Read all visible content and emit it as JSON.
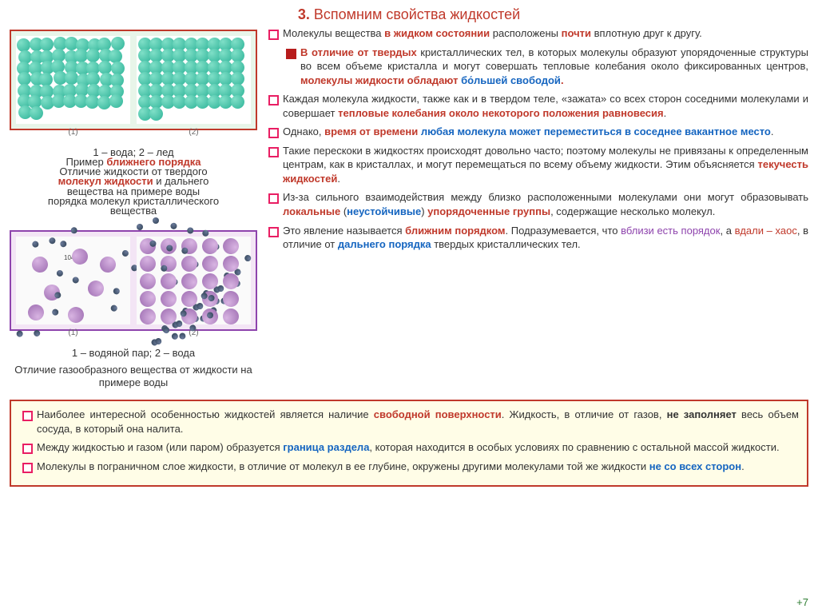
{
  "title": {
    "prefix": "3. ",
    "text": "Вспомним свойства жидкостей",
    "color": "#c0392b"
  },
  "left": {
    "fig1": {
      "label1": "(1)",
      "label2": "(2)"
    },
    "cap1a": "1 – вода; 2 – лед",
    "cap1b_pre": "Пример ",
    "cap1b_red1": "ближнего порядка",
    "cap1b_mid": "Отличие жидкости от твердого",
    "cap1b_red2": "молекул жидкости",
    "cap1b_post": " и дальнего",
    "cap1b_line3": "вещества на примере воды",
    "cap1b_line4": "порядка молекул кристаллического",
    "cap1b_line5": "вещества",
    "fig2": {
      "label1": "(1)",
      "label2": "(2)",
      "angle": "104°"
    },
    "cap2a": "1 – водяной пар; 2 – вода",
    "cap2b": "Отличие газообразного вещества от жидкости на примере воды"
  },
  "bullets": [
    {
      "parts": [
        {
          "t": "Молекулы вещества "
        },
        {
          "t": "в жидком состоянии",
          "c": "#c0392b",
          "b": 1
        },
        {
          "t": " расположены "
        },
        {
          "t": "почти",
          "c": "#c0392b",
          "b": 1
        },
        {
          "t": " вплотную друг к другу."
        }
      ]
    },
    {
      "nested": true,
      "parts": [
        {
          "t": "В отличие от твердых",
          "c": "#c0392b",
          "b": 1
        },
        {
          "t": " кристаллических тел, в которых молекулы образуют упорядоченные структуры во всем объеме кристалла и могут совершать тепловые колебания около фиксированных центров, "
        },
        {
          "t": "молекулы жидкости обладают ",
          "c": "#c0392b",
          "b": 1
        },
        {
          "t": "бо́льшей свободой",
          "c": "#1565c0",
          "b": 1
        },
        {
          "t": ".",
          "c": "#c0392b",
          "b": 1
        }
      ]
    },
    {
      "parts": [
        {
          "t": "Каждая молекула жидкости, также как и в твердом теле, «зажата» со всех сторон соседними молекулами и совершает "
        },
        {
          "t": "тепловые колебания около некоторого положения равновесия",
          "c": "#c0392b",
          "b": 1
        },
        {
          "t": "."
        }
      ]
    },
    {
      "parts": [
        {
          "t": "Однако, "
        },
        {
          "t": "время от времени",
          "c": "#c0392b",
          "b": 1
        },
        {
          "t": " "
        },
        {
          "t": "любая молекула может переместиться в соседнее вакантное место",
          "c": "#1565c0",
          "b": 1
        },
        {
          "t": "."
        }
      ]
    },
    {
      "parts": [
        {
          "t": "Такие перескоки в жидкостях происходят довольно часто; поэтому молекулы не привязаны к определенным центрам, как в кристаллах, и могут перемещаться по всему объему жидкости. Этим объясняется "
        },
        {
          "t": "текучесть жидкостей",
          "c": "#c0392b",
          "b": 1
        },
        {
          "t": "."
        }
      ]
    },
    {
      "parts": [
        {
          "t": "Из-за сильного взаимодействия между близко расположенными молекулами они могут образовывать "
        },
        {
          "t": "локальные",
          "c": "#c0392b",
          "b": 1
        },
        {
          "t": " ("
        },
        {
          "t": "неустойчивые",
          "c": "#1565c0",
          "b": 1
        },
        {
          "t": ") "
        },
        {
          "t": "упорядоченные группы",
          "c": "#c0392b",
          "b": 1
        },
        {
          "t": ", содержащие несколько молекул."
        }
      ]
    },
    {
      "parts": [
        {
          "t": "Это явление называется "
        },
        {
          "t": "ближним порядком",
          "c": "#c0392b",
          "b": 1
        },
        {
          "t": ". Подразумевается, что "
        },
        {
          "t": "вблизи есть порядок",
          "c": "#8e44ad"
        },
        {
          "t": ", а "
        },
        {
          "t": "вдали – хаос",
          "c": "#c0392b"
        },
        {
          "t": ", в отличие от "
        },
        {
          "t": "дальнего порядка",
          "c": "#1565c0",
          "b": 1
        },
        {
          "t": " твердых кристаллических тел."
        }
      ]
    }
  ],
  "bottom": [
    {
      "parts": [
        {
          "t": "Наиболее интересной особенностью жидкостей является наличие "
        },
        {
          "t": "свободной поверхности",
          "c": "#c0392b",
          "b": 1
        },
        {
          "t": ". Жидкость, в отличие от газов, "
        },
        {
          "t": "не заполняет",
          "b": 1
        },
        {
          "t": " весь объем сосуда, в который она налита."
        }
      ]
    },
    {
      "parts": [
        {
          "t": "Между жидкостью и газом (или паром) образуется "
        },
        {
          "t": "граница раздела",
          "c": "#1565c0",
          "b": 1
        },
        {
          "t": ", которая находится в особых условиях по сравнению с остальной массой жидкости."
        }
      ]
    },
    {
      "parts": [
        {
          "t": "Молекулы в пограничном слое жидкости, в отличие от молекул в ее глубине, окружены другими молекулами той же жидкости "
        },
        {
          "t": "не со всех сторон",
          "c": "#1565c0",
          "b": 1
        },
        {
          "t": "."
        }
      ]
    }
  ],
  "pagenum": "+7",
  "colors": {
    "title": "#c0392b",
    "red": "#c0392b",
    "blue": "#1565c0",
    "purple": "#8e44ad",
    "green": "#2e7d32"
  }
}
